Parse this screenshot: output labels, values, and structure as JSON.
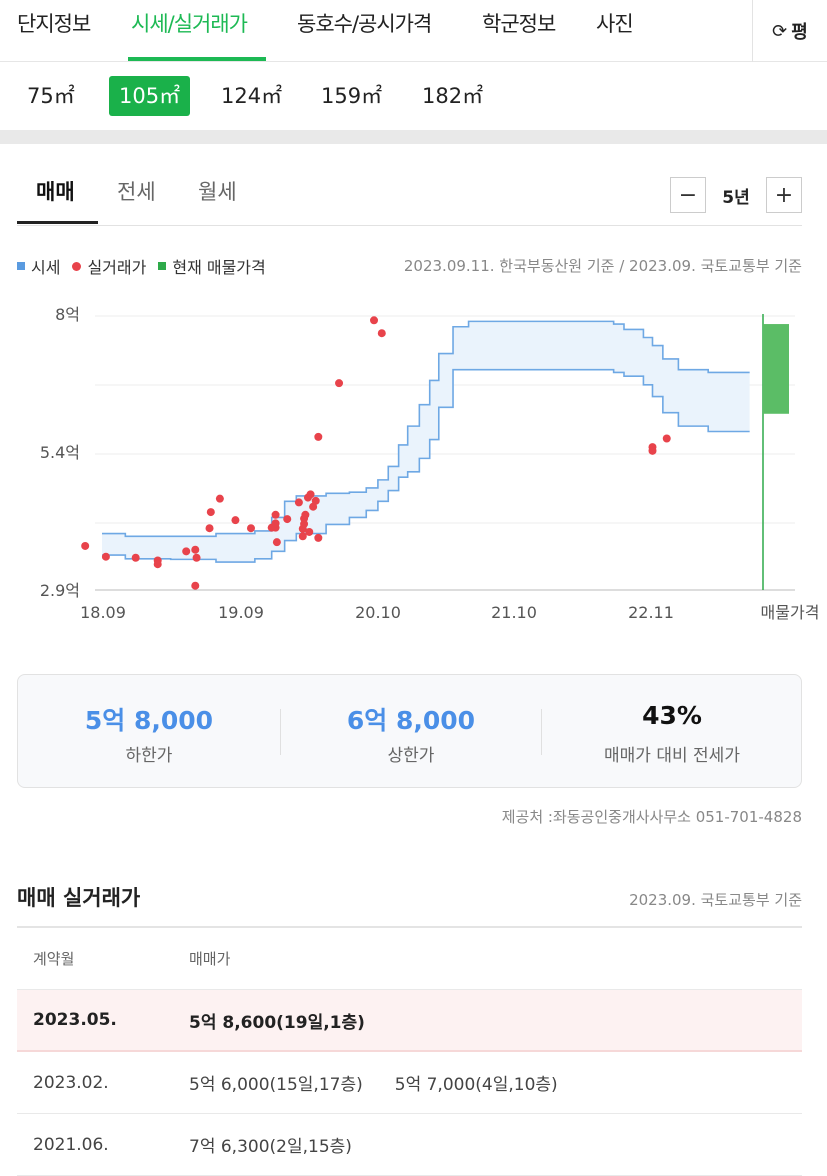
{
  "top_tabs": [
    {
      "label": "단지정보",
      "x": 17
    },
    {
      "label": "시세/실거래가",
      "x": 131,
      "active": true
    },
    {
      "label": "동호수/공시가격",
      "x": 297
    },
    {
      "label": "학군정보",
      "x": 482
    },
    {
      "label": "사진",
      "x": 596
    }
  ],
  "refresh": {
    "icon": "refresh-icon",
    "label": "평"
  },
  "sizes": [
    {
      "label": "75㎡",
      "x": 17
    },
    {
      "label": "105㎡",
      "x": 109,
      "active": true
    },
    {
      "label": "124㎡",
      "x": 211
    },
    {
      "label": "159㎡",
      "x": 311
    },
    {
      "label": "182㎡",
      "x": 412
    }
  ],
  "deal_tabs": [
    {
      "label": "매매",
      "active": true
    },
    {
      "label": "전세"
    },
    {
      "label": "월세"
    }
  ],
  "period": {
    "minus": "−",
    "label": "5년",
    "plus": "+"
  },
  "legend": {
    "market": "시세",
    "actual": "실거래가",
    "listing": "현재 매물가격",
    "basis": "2023.09.11. 한국부동산원 기준 / 2023.09. 국토교통부 기준"
  },
  "colors": {
    "accent": "#1db954",
    "market_line": "#6ea8e4",
    "market_fill": "#eaf3fc",
    "deal_dot": "#e8434b",
    "listing": "#5bbd66",
    "value_blue": "#4a8fe7"
  },
  "chart_data": {
    "type": "scatter",
    "x_ticks": [
      "18.09",
      "19.09",
      "20.10",
      "21.10",
      "22.11",
      "매물가격"
    ],
    "y_ticks": [
      "2.9억",
      "5.4억",
      "8억"
    ],
    "ylim": [
      2.9,
      8.0
    ],
    "x_range": [
      2018.5,
      2023.75
    ],
    "market_upper": [
      [
        2018.67,
        3.95
      ],
      [
        2018.85,
        3.9
      ],
      [
        2019.2,
        3.9
      ],
      [
        2019.55,
        3.95
      ],
      [
        2019.85,
        4.0
      ],
      [
        2019.98,
        4.25
      ],
      [
        2020.08,
        4.55
      ],
      [
        2020.17,
        4.65
      ],
      [
        2020.4,
        4.7
      ],
      [
        2020.58,
        4.72
      ],
      [
        2020.71,
        4.8
      ],
      [
        2020.8,
        4.95
      ],
      [
        2020.88,
        5.2
      ],
      [
        2020.96,
        5.6
      ],
      [
        2021.03,
        5.95
      ],
      [
        2021.12,
        6.35
      ],
      [
        2021.2,
        6.8
      ],
      [
        2021.27,
        7.3
      ],
      [
        2021.38,
        7.8
      ],
      [
        2021.5,
        7.9
      ],
      [
        2022.55,
        7.9
      ],
      [
        2022.62,
        7.85
      ],
      [
        2022.7,
        7.75
      ],
      [
        2022.85,
        7.6
      ],
      [
        2022.92,
        7.45
      ],
      [
        2023.0,
        7.2
      ],
      [
        2023.12,
        7.0
      ],
      [
        2023.35,
        6.95
      ],
      [
        2023.67,
        6.95
      ]
    ],
    "market_lower": [
      [
        2018.67,
        3.55
      ],
      [
        2018.85,
        3.48
      ],
      [
        2019.2,
        3.47
      ],
      [
        2019.55,
        3.42
      ],
      [
        2019.85,
        3.48
      ],
      [
        2019.98,
        3.62
      ],
      [
        2020.08,
        3.82
      ],
      [
        2020.17,
        3.95
      ],
      [
        2020.4,
        4.12
      ],
      [
        2020.58,
        4.25
      ],
      [
        2020.71,
        4.38
      ],
      [
        2020.8,
        4.55
      ],
      [
        2020.88,
        4.75
      ],
      [
        2020.96,
        5.0
      ],
      [
        2021.03,
        5.1
      ],
      [
        2021.12,
        5.35
      ],
      [
        2021.2,
        5.7
      ],
      [
        2021.27,
        6.3
      ],
      [
        2021.38,
        7.0
      ],
      [
        2021.5,
        7.0
      ],
      [
        2022.55,
        7.0
      ],
      [
        2022.62,
        6.95
      ],
      [
        2022.7,
        6.88
      ],
      [
        2022.85,
        6.72
      ],
      [
        2022.92,
        6.5
      ],
      [
        2023.0,
        6.2
      ],
      [
        2023.12,
        5.95
      ],
      [
        2023.35,
        5.85
      ],
      [
        2023.67,
        5.85
      ]
    ],
    "deals": [
      [
        2018.54,
        3.72
      ],
      [
        2018.7,
        3.52
      ],
      [
        2018.93,
        3.5
      ],
      [
        2019.1,
        3.45
      ],
      [
        2019.1,
        3.38
      ],
      [
        2019.32,
        3.62
      ],
      [
        2019.39,
        3.65
      ],
      [
        2019.4,
        3.5
      ],
      [
        2019.39,
        2.98
      ],
      [
        2019.5,
        4.05
      ],
      [
        2019.51,
        4.35
      ],
      [
        2019.58,
        4.6
      ],
      [
        2019.7,
        4.2
      ],
      [
        2019.82,
        4.05
      ],
      [
        2019.98,
        4.06
      ],
      [
        2020.02,
        3.79
      ],
      [
        2020.01,
        4.06
      ],
      [
        2020.01,
        4.14
      ],
      [
        2020.01,
        4.3
      ],
      [
        2020.1,
        4.22
      ],
      [
        2020.19,
        4.53
      ],
      [
        2020.22,
        3.9
      ],
      [
        2020.22,
        4.04
      ],
      [
        2020.23,
        4.13
      ],
      [
        2020.23,
        4.23
      ],
      [
        2020.24,
        4.3
      ],
      [
        2020.26,
        4.62
      ],
      [
        2020.27,
        3.98
      ],
      [
        2020.28,
        4.68
      ],
      [
        2020.34,
        3.87
      ],
      [
        2020.3,
        4.45
      ],
      [
        2020.32,
        4.56
      ],
      [
        2020.34,
        5.75
      ],
      [
        2020.5,
        6.75
      ],
      [
        2020.77,
        7.92
      ],
      [
        2020.83,
        7.68
      ],
      [
        2022.92,
        5.56
      ],
      [
        2022.92,
        5.49
      ],
      [
        2023.03,
        5.72
      ]
    ],
    "listing_range": [
      6.18,
      7.85
    ]
  },
  "summary": [
    {
      "value": "5억 8,000",
      "label": "하한가",
      "blue": true
    },
    {
      "value": "6억 8,000",
      "label": "상한가",
      "blue": true
    },
    {
      "value": "43%",
      "label": "매매가 대비 전세가",
      "blue": false
    }
  ],
  "provider": "제공처 :좌동공인중개사사무소 051-701-4828",
  "trades": {
    "title": "매매 실거래가",
    "basis": "2023.09. 국토교통부 기준",
    "headers": [
      "계약월",
      "매매가"
    ],
    "rows": [
      {
        "month": "2023.05.",
        "prices": [
          "5억 8,600(19일,1층)"
        ],
        "highlight": true
      },
      {
        "month": "2023.02.",
        "prices": [
          "5억 6,000(15일,17층)",
          "5억 7,000(4일,10층)"
        ]
      },
      {
        "month": "2021.06.",
        "prices": [
          "7억 6,300(2일,15층)"
        ]
      }
    ]
  }
}
